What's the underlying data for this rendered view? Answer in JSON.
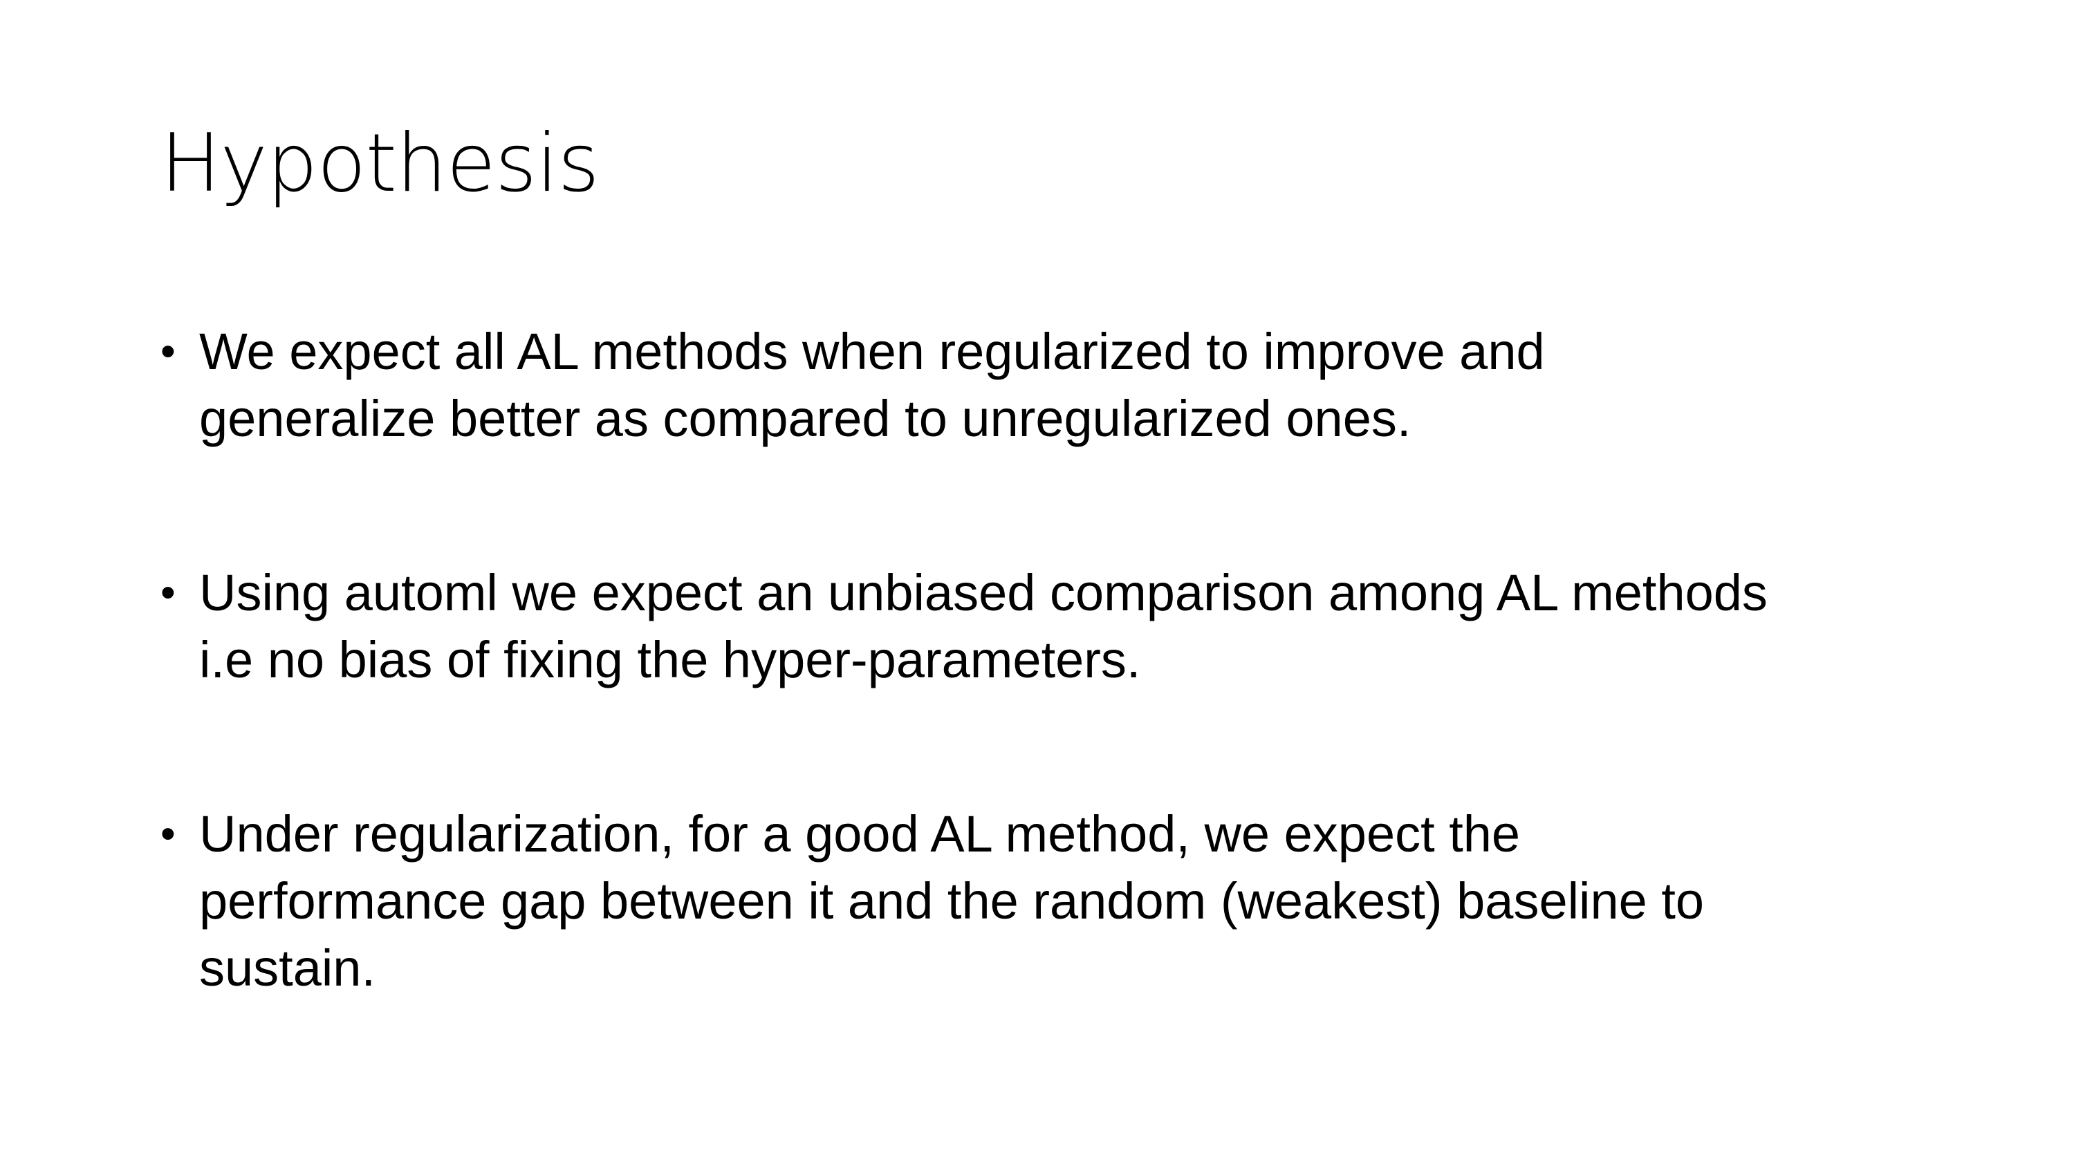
{
  "slide": {
    "title": "Hypothesis",
    "bullets": [
      {
        "marker": "•",
        "lines": [
          "We expect all AL methods when regularized to improve and",
          "generalize better as compared to unregularized ones."
        ]
      },
      {
        "marker": "•",
        "lines": [
          "Using automl we expect an unbiased comparison among AL methods",
          "i.e no bias of fixing the hyper-parameters."
        ]
      },
      {
        "marker": "•",
        "lines": [
          "Under regularization, for a good AL method, we expect the",
          "performance gap between it and the random (weakest) baseline to",
          "sustain."
        ]
      }
    ]
  }
}
